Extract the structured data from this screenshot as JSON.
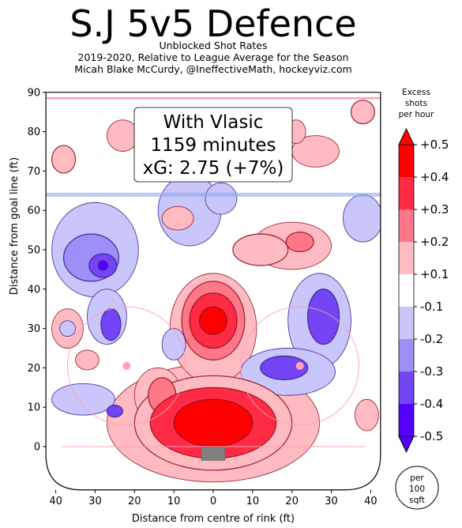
{
  "chart_data": {
    "type": "heatmap",
    "title": "S.J 5v5 Defence",
    "subtitle_lines": [
      "Unblocked Shot Rates",
      "2019-2020, Relative to League Average for the Season",
      "Micah Blake McCurdy, @IneffectiveMath, hockeyviz.com"
    ],
    "xlabel": "Distance from centre of rink (ft)",
    "ylabel": "Distance from goal line (ft)",
    "xlim": [
      -42.5,
      42.5
    ],
    "ylim": [
      -11,
      90
    ],
    "x_ticks": [
      -40,
      -30,
      -20,
      -10,
      0,
      10,
      20,
      30,
      40
    ],
    "x_tick_labels": [
      "40",
      "30",
      "20",
      "10",
      "0",
      "10",
      "20",
      "30",
      "40"
    ],
    "y_ticks": [
      0,
      10,
      20,
      30,
      40,
      50,
      60,
      70,
      80,
      90
    ],
    "y_tick_labels": [
      "0",
      "10",
      "20",
      "30",
      "40",
      "50",
      "60",
      "70",
      "80",
      "90"
    ],
    "annotation_lines": [
      "With Vlasic",
      "1159 minutes",
      "xG: 2.75 (+7%)"
    ],
    "colorbar": {
      "title_lines": [
        "Excess",
        "shots",
        "per hour"
      ],
      "levels": [
        0.5,
        0.4,
        0.3,
        0.2,
        0.1,
        -0.1,
        -0.2,
        -0.3,
        -0.4,
        -0.5
      ],
      "labels": [
        "+0.5",
        "+0.4",
        "+0.3",
        "+0.2",
        "+0.1",
        "-0.1",
        "-0.2",
        "-0.3",
        "-0.4",
        "-0.5"
      ],
      "colors": [
        "#ff0000",
        "#ff2a44",
        "#ff7788",
        "#ffbbc1",
        "#ffffff",
        "#c8c6fa",
        "#9c8ff8",
        "#7345f5",
        "#5500ff"
      ]
    },
    "unit_note_lines": [
      "per",
      "100",
      "sqft"
    ],
    "regions": [
      {
        "x": 0,
        "y": 6,
        "rx": 10,
        "ry": 6,
        "value": 0.48
      },
      {
        "x": 0,
        "y": 6,
        "rx": 16,
        "ry": 9,
        "value": 0.35
      },
      {
        "x": 0,
        "y": 6,
        "rx": 20,
        "ry": 12,
        "value": 0.2
      },
      {
        "x": 0,
        "y": 6,
        "rx": 27,
        "ry": 15,
        "value": 0.12
      },
      {
        "x": 0,
        "y": 32,
        "rx": 3.5,
        "ry": 3.5,
        "value": 0.5
      },
      {
        "x": 0,
        "y": 32,
        "rx": 6,
        "ry": 7,
        "value": 0.38
      },
      {
        "x": 0,
        "y": 32,
        "rx": 8,
        "ry": 10,
        "value": 0.25
      },
      {
        "x": 0,
        "y": 30,
        "rx": 11,
        "ry": 14,
        "value": 0.15
      },
      {
        "x": 0,
        "y": 20,
        "rx": 5,
        "ry": 12,
        "value": 0.12
      },
      {
        "x": -13,
        "y": 13,
        "rx": 3.5,
        "ry": 4.5,
        "value": 0.25
      },
      {
        "x": -14,
        "y": 13,
        "rx": 6,
        "ry": 7,
        "value": 0.15
      },
      {
        "x": 12,
        "y": 50,
        "rx": 7,
        "ry": 4,
        "value": 0.2
      },
      {
        "x": 22,
        "y": 52,
        "rx": 3.5,
        "ry": 2.5,
        "value": 0.3
      },
      {
        "x": 20,
        "y": 51,
        "rx": 10,
        "ry": 6,
        "value": 0.15
      },
      {
        "x": -9,
        "y": 58,
        "rx": 4,
        "ry": 3,
        "value": 0.15
      },
      {
        "x": 26,
        "y": 75,
        "rx": 6,
        "ry": 4,
        "value": 0.12
      },
      {
        "x": -23,
        "y": 79,
        "rx": 4,
        "ry": 4,
        "value": 0.15
      },
      {
        "x": -38,
        "y": 73,
        "rx": 3,
        "ry": 3.5,
        "value": 0.2
      },
      {
        "x": -37,
        "y": 30,
        "rx": 4,
        "ry": 5,
        "value": 0.15
      },
      {
        "x": -32,
        "y": 22,
        "rx": 3,
        "ry": 2.5,
        "value": 0.15
      },
      {
        "x": 39,
        "y": 8,
        "rx": 3,
        "ry": 4,
        "value": 0.15
      },
      {
        "x": 38,
        "y": 85,
        "rx": 3,
        "ry": 3,
        "value": 0.2
      },
      {
        "x": 21,
        "y": 80,
        "rx": 2.5,
        "ry": 3,
        "value": 0.12
      },
      {
        "x": -30,
        "y": 50,
        "rx": 11,
        "ry": 12,
        "value": -0.15
      },
      {
        "x": -31,
        "y": 48,
        "rx": 7,
        "ry": 6,
        "value": -0.25
      },
      {
        "x": -28,
        "y": 46,
        "rx": 3.5,
        "ry": 3,
        "value": -0.38
      },
      {
        "x": -28,
        "y": 46,
        "rx": 1.2,
        "ry": 1.2,
        "value": -0.45
      },
      {
        "x": -26,
        "y": 31,
        "rx": 2.5,
        "ry": 4,
        "value": -0.3
      },
      {
        "x": -27,
        "y": 33,
        "rx": 5,
        "ry": 7,
        "value": -0.15
      },
      {
        "x": -6,
        "y": 60,
        "rx": 8,
        "ry": 9,
        "value": -0.15
      },
      {
        "x": 2,
        "y": 63,
        "rx": 4,
        "ry": 4,
        "value": -0.15
      },
      {
        "x": 28,
        "y": 33,
        "rx": 4,
        "ry": 7,
        "value": -0.3
      },
      {
        "x": 27,
        "y": 32,
        "rx": 8,
        "ry": 12,
        "value": -0.15
      },
      {
        "x": 18,
        "y": 20,
        "rx": 6,
        "ry": 3,
        "value": -0.3
      },
      {
        "x": 19,
        "y": 19,
        "rx": 12,
        "ry": 6,
        "value": -0.15
      },
      {
        "x": 38,
        "y": 58,
        "rx": 5,
        "ry": 6,
        "value": -0.15
      },
      {
        "x": -33,
        "y": 12,
        "rx": 8,
        "ry": 4,
        "value": -0.15
      },
      {
        "x": -25,
        "y": 9,
        "rx": 2,
        "ry": 1.5,
        "value": -0.3
      },
      {
        "x": -10,
        "y": 26,
        "rx": 3,
        "ry": 4,
        "value": -0.15
      },
      {
        "x": -37,
        "y": 30,
        "rx": 2,
        "ry": 2,
        "value": -0.15
      }
    ]
  }
}
